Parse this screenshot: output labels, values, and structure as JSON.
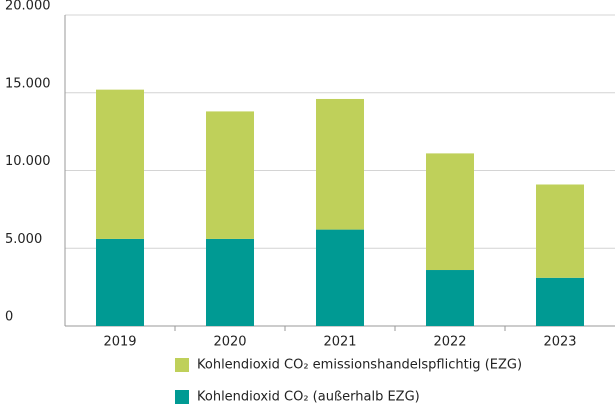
{
  "chart_data": {
    "type": "stacked_bar",
    "categories": [
      "2019",
      "2020",
      "2021",
      "2022",
      "2023"
    ],
    "series": [
      {
        "name": "Kohlendioxid CO₂ emissionshandelspflichtig (EZG)",
        "color": "#bfd05a",
        "values": [
          9600,
          8200,
          8400,
          7500,
          6000
        ]
      },
      {
        "name": "Kohlendioxid CO₂ (außerhalb EZG)",
        "color": "#009a93",
        "values": [
          5600,
          5600,
          6200,
          3600,
          3100
        ]
      }
    ],
    "ylim": [
      0,
      20000
    ],
    "yticks": [
      0,
      {
        "value": 5000,
        "label": "5.000"
      },
      {
        "value": 10000,
        "label": "10.000"
      },
      {
        "value": 15000,
        "label": "15.000"
      },
      {
        "value": 20000,
        "label": "20.000"
      }
    ],
    "grid": true
  }
}
